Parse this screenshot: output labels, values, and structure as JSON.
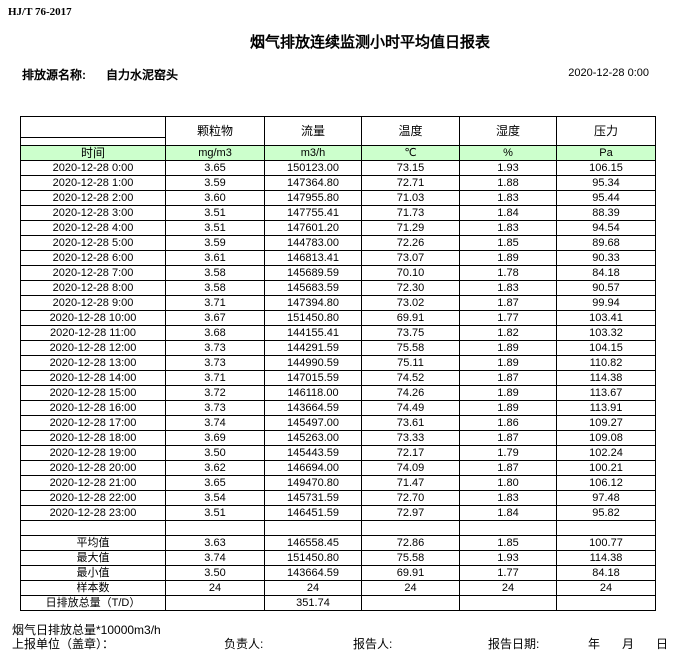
{
  "header": {
    "standard": "HJ/T  76-2017",
    "title": "烟气排放连续监测小时平均值日报表",
    "source_label": "排放源名称:",
    "source_name": "自力水泥窑头",
    "report_datetime": "2020-12-28 0:00"
  },
  "table": {
    "columns": [
      "颗粒物",
      "流量",
      "温度",
      "湿度",
      "压力"
    ],
    "time_label": "时间",
    "units": [
      "mg/m3",
      "m3/h",
      "℃",
      "%",
      "Pa"
    ],
    "unit_row_color": "#ccffcc",
    "rows": [
      [
        "2020-12-28 0:00",
        "3.65",
        "150123.00",
        "73.15",
        "1.93",
        "106.15"
      ],
      [
        "2020-12-28 1:00",
        "3.59",
        "147364.80",
        "72.71",
        "1.88",
        "95.34"
      ],
      [
        "2020-12-28 2:00",
        "3.60",
        "147955.80",
        "71.03",
        "1.83",
        "95.44"
      ],
      [
        "2020-12-28 3:00",
        "3.51",
        "147755.41",
        "71.73",
        "1.84",
        "88.39"
      ],
      [
        "2020-12-28 4:00",
        "3.51",
        "147601.20",
        "71.29",
        "1.83",
        "94.54"
      ],
      [
        "2020-12-28 5:00",
        "3.59",
        "144783.00",
        "72.26",
        "1.85",
        "89.68"
      ],
      [
        "2020-12-28 6:00",
        "3.61",
        "146813.41",
        "73.07",
        "1.89",
        "90.33"
      ],
      [
        "2020-12-28 7:00",
        "3.58",
        "145689.59",
        "70.10",
        "1.78",
        "84.18"
      ],
      [
        "2020-12-28 8:00",
        "3.58",
        "145683.59",
        "72.30",
        "1.83",
        "90.57"
      ],
      [
        "2020-12-28 9:00",
        "3.71",
        "147394.80",
        "73.02",
        "1.87",
        "99.94"
      ],
      [
        "2020-12-28 10:00",
        "3.67",
        "151450.80",
        "69.91",
        "1.77",
        "103.41"
      ],
      [
        "2020-12-28 11:00",
        "3.68",
        "144155.41",
        "73.75",
        "1.82",
        "103.32"
      ],
      [
        "2020-12-28 12:00",
        "3.73",
        "144291.59",
        "75.58",
        "1.89",
        "104.15"
      ],
      [
        "2020-12-28 13:00",
        "3.73",
        "144990.59",
        "75.11",
        "1.89",
        "110.82"
      ],
      [
        "2020-12-28 14:00",
        "3.71",
        "147015.59",
        "74.52",
        "1.87",
        "114.38"
      ],
      [
        "2020-12-28 15:00",
        "3.72",
        "146118.00",
        "74.26",
        "1.89",
        "113.67"
      ],
      [
        "2020-12-28 16:00",
        "3.73",
        "143664.59",
        "74.49",
        "1.89",
        "113.91"
      ],
      [
        "2020-12-28 17:00",
        "3.74",
        "145497.00",
        "73.61",
        "1.86",
        "109.27"
      ],
      [
        "2020-12-28 18:00",
        "3.69",
        "145263.00",
        "73.33",
        "1.87",
        "109.08"
      ],
      [
        "2020-12-28 19:00",
        "3.50",
        "145443.59",
        "72.17",
        "1.79",
        "102.24"
      ],
      [
        "2020-12-28 20:00",
        "3.62",
        "146694.00",
        "74.09",
        "1.87",
        "100.21"
      ],
      [
        "2020-12-28 21:00",
        "3.65",
        "149470.80",
        "71.47",
        "1.80",
        "106.12"
      ],
      [
        "2020-12-28 22:00",
        "3.54",
        "145731.59",
        "72.70",
        "1.83",
        "97.48"
      ],
      [
        "2020-12-28 23:00",
        "3.51",
        "146451.59",
        "72.97",
        "1.84",
        "95.82"
      ]
    ],
    "summary": [
      [
        "平均值",
        "3.63",
        "146558.45",
        "72.86",
        "1.85",
        "100.77"
      ],
      [
        "最大值",
        "3.74",
        "151450.80",
        "75.58",
        "1.93",
        "114.38"
      ],
      [
        "最小值",
        "3.50",
        "143664.59",
        "69.91",
        "1.77",
        "84.18"
      ],
      [
        "样本数",
        "24",
        "24",
        "24",
        "24",
        "24"
      ],
      [
        "日排放总量（T/D）",
        "",
        "351.74",
        "",
        "",
        ""
      ]
    ]
  },
  "footer": {
    "note": "烟气日排放总量*10000m3/h",
    "unit_label": "上报单位（盖章）：",
    "responsible_label": "负责人:",
    "reporter_label": "报告人:",
    "report_date_label": "报告日期:",
    "year": "年",
    "month": "月",
    "day": "日"
  }
}
